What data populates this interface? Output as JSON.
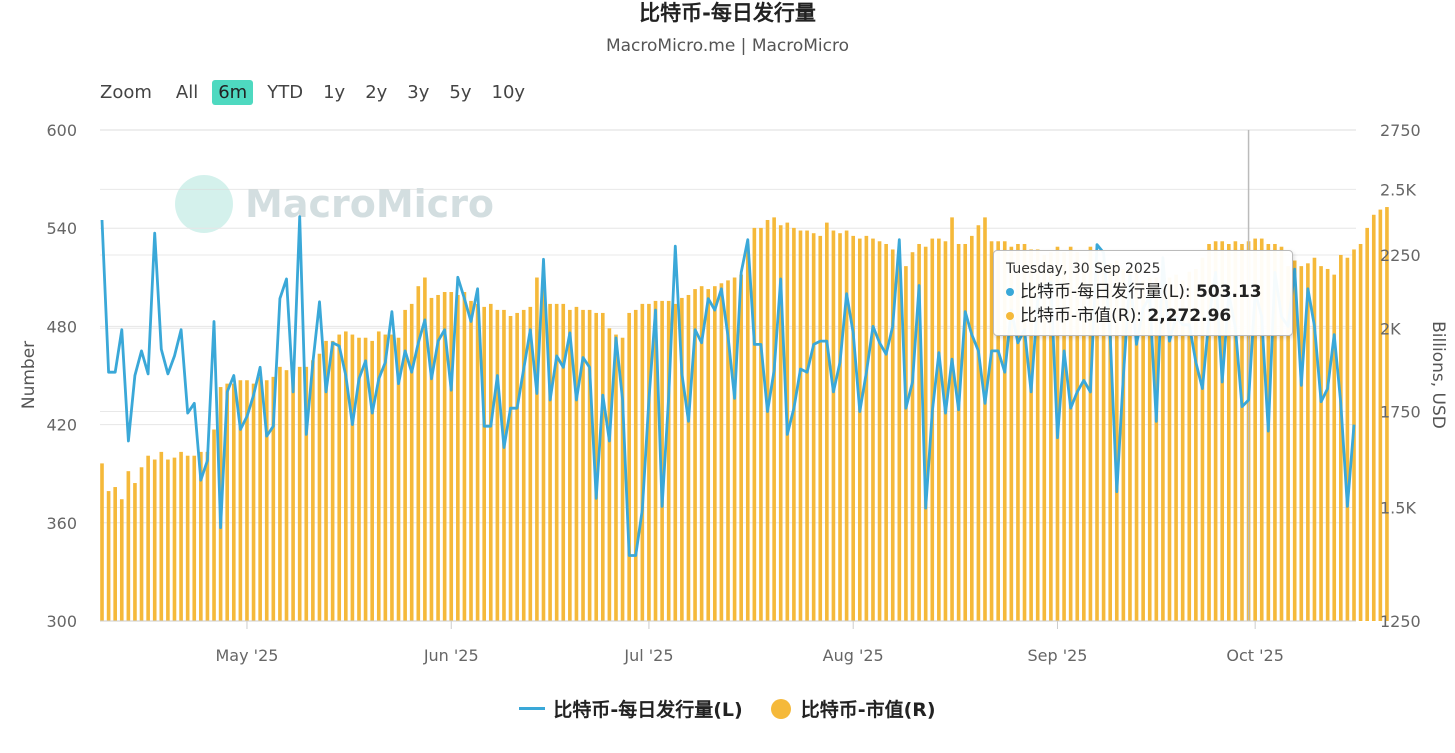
{
  "title": "比特币-每日发行量",
  "subtitle": "MacroMicro.me | MacroMicro",
  "watermark": "MacroMicro",
  "zoom": {
    "label": "Zoom",
    "buttons": [
      "All",
      "6m",
      "YTD",
      "1y",
      "2y",
      "3y",
      "5y",
      "10y"
    ],
    "active": "6m"
  },
  "tooltip": {
    "date": "Tuesday, 30 Sep 2025",
    "rows": [
      {
        "label": "比特币-每日发行量(L):",
        "value": "503.13",
        "color": "#3aa8d8"
      },
      {
        "label": "比特币-市值(R):",
        "value": "2,272.96",
        "color": "#f5b93a"
      }
    ]
  },
  "legend": [
    {
      "name": "比特币-每日发行量(L)",
      "color": "#3aa8d8",
      "shape": "line"
    },
    {
      "name": "比特币-市值(R)",
      "color": "#f5b93a",
      "shape": "circle"
    }
  ],
  "chart_data": {
    "type": "bar+line",
    "x_start": "2025-04-09",
    "x_ticks": [
      "May '25",
      "Jun '25",
      "Jul '25",
      "Aug '25",
      "Sep '25",
      "Oct '25"
    ],
    "ylabel_left": "Number",
    "ylabel_right": "Billions, USD",
    "y_left": {
      "min": 300,
      "max": 600,
      "ticks": [
        "600",
        "540",
        "480",
        "420",
        "360",
        "300"
      ]
    },
    "y_right": {
      "scale": "log",
      "min": 1250,
      "max": 2750,
      "ticks": [
        {
          "v": 2750,
          "t": "2750"
        },
        {
          "v": 2500,
          "t": "2.5K"
        },
        {
          "v": 2250,
          "t": "2250"
        },
        {
          "v": 2000,
          "t": "2K"
        },
        {
          "v": 1750,
          "t": "1750"
        },
        {
          "v": 1500,
          "t": "1.5K"
        },
        {
          "v": 1250,
          "t": "1250"
        }
      ]
    },
    "series": [
      {
        "name": "比特币-每日发行量(L)",
        "type": "line",
        "color": "#3aa8d8",
        "values": [
          545,
          452,
          452,
          478,
          410,
          450,
          465,
          451,
          537,
          466,
          451,
          462,
          478,
          427,
          433,
          386,
          398,
          483,
          357,
          440,
          450,
          417,
          425,
          438,
          455,
          413,
          419,
          497,
          509,
          440,
          547,
          414,
          458,
          495,
          440,
          470,
          468,
          450,
          420,
          448,
          459,
          427,
          448,
          458,
          489,
          445,
          465,
          452,
          470,
          484,
          448,
          471,
          478,
          441,
          510,
          497,
          483,
          503,
          419,
          419,
          450,
          406,
          430,
          430,
          454,
          478,
          439,
          521,
          435,
          462,
          455,
          476,
          435,
          461,
          455,
          375,
          438,
          410,
          473,
          435,
          340,
          340,
          368,
          435,
          490,
          370,
          437,
          529,
          451,
          422,
          478,
          470,
          497,
          490,
          503,
          474,
          436,
          513,
          533,
          469,
          469,
          428,
          453,
          509,
          414,
          430,
          454,
          452,
          469,
          471,
          471,
          440,
          458,
          500,
          476,
          428,
          452,
          480,
          470,
          463,
          480,
          533,
          430,
          446,
          505,
          369,
          428,
          464,
          427,
          460,
          429,
          489,
          475,
          465,
          433,
          465,
          465,
          452,
          490,
          470,
          478,
          440,
          496,
          505,
          507,
          412,
          465,
          430,
          440,
          447,
          440,
          530,
          525,
          474,
          379,
          450,
          511,
          469,
          491,
          498,
          422,
          522,
          471,
          486,
          481,
          481,
          458,
          442,
          485,
          513,
          446,
          500,
          479,
          431,
          435,
          501,
          486,
          416,
          513,
          486,
          480,
          515,
          444,
          503,
          480,
          434,
          442,
          475,
          433,
          370,
          420
        ]
      },
      {
        "name": "比特币-市值(R)",
        "type": "bar",
        "color": "#f5b93a",
        "values": [
          1610,
          1540,
          1550,
          1520,
          1590,
          1560,
          1600,
          1630,
          1620,
          1640,
          1620,
          1625,
          1640,
          1630,
          1630,
          1640,
          1640,
          1700,
          1820,
          1830,
          1830,
          1840,
          1840,
          1830,
          1850,
          1840,
          1850,
          1880,
          1870,
          1870,
          1880,
          1880,
          1900,
          1920,
          1960,
          1960,
          1980,
          1990,
          1980,
          1970,
          1970,
          1960,
          1990,
          1980,
          1980,
          1970,
          2060,
          2080,
          2140,
          2170,
          2100,
          2110,
          2120,
          2120,
          2110,
          2120,
          2090,
          2080,
          2070,
          2080,
          2060,
          2060,
          2040,
          2050,
          2060,
          2070,
          2170,
          2160,
          2080,
          2080,
          2080,
          2060,
          2070,
          2060,
          2060,
          2050,
          2050,
          2000,
          1980,
          1970,
          2050,
          2060,
          2080,
          2080,
          2090,
          2090,
          2090,
          2080,
          2100,
          2110,
          2130,
          2140,
          2130,
          2140,
          2150,
          2160,
          2170,
          2180,
          2290,
          2350,
          2350,
          2380,
          2390,
          2360,
          2370,
          2350,
          2340,
          2340,
          2330,
          2320,
          2370,
          2340,
          2330,
          2340,
          2320,
          2310,
          2320,
          2310,
          2300,
          2290,
          2270,
          2230,
          2210,
          2260,
          2290,
          2280,
          2310,
          2310,
          2300,
          2390,
          2290,
          2290,
          2320,
          2360,
          2390,
          2300,
          2300,
          2300,
          2280,
          2290,
          2290,
          2270,
          2270,
          2250,
          2260,
          2280,
          2260,
          2280,
          2260,
          2230,
          2280,
          2230,
          2230,
          2220,
          2230,
          2200,
          2200,
          2190,
          2160,
          2170,
          2170,
          2160,
          2170,
          2180,
          2160,
          2190,
          2200,
          2240,
          2290,
          2300,
          2300,
          2290,
          2300,
          2290,
          2300,
          2310,
          2310,
          2290,
          2290,
          2280,
          2210,
          2230,
          2210,
          2220,
          2240,
          2210,
          2200,
          2180,
          2250,
          2240,
          2270,
          2290,
          2350,
          2400,
          2420,
          2430
        ]
      }
    ]
  }
}
